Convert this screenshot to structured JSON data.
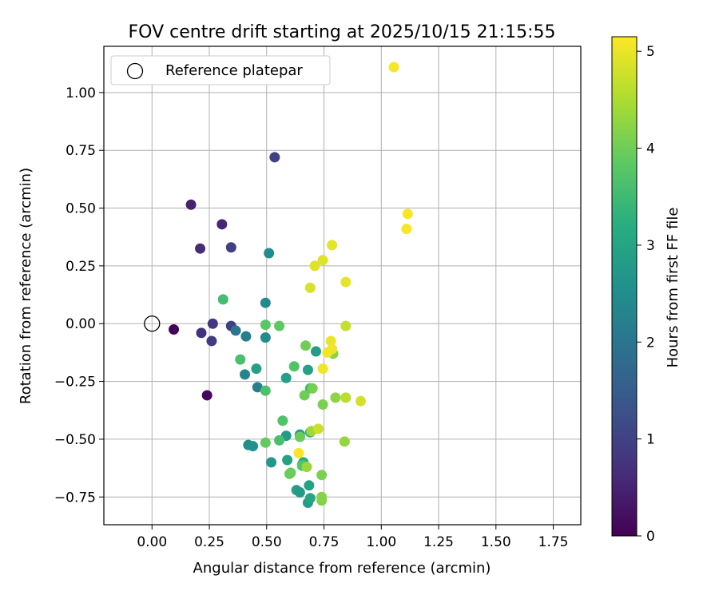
{
  "chart_data": {
    "type": "scatter",
    "title": "FOV centre drift starting at 2025/10/15 21:15:55",
    "xlabel": "Angular distance from reference (arcmin)",
    "ylabel": "Rotation from reference (arcmin)",
    "xlim": [
      -0.21,
      1.87
    ],
    "ylim": [
      -0.87,
      1.2
    ],
    "xticks": [
      0.0,
      0.25,
      0.5,
      0.75,
      1.0,
      1.25,
      1.5,
      1.75
    ],
    "xtick_labels": [
      "0.00",
      "0.25",
      "0.50",
      "0.75",
      "1.00",
      "1.25",
      "1.50",
      "1.75"
    ],
    "yticks": [
      -0.75,
      -0.5,
      -0.25,
      0.0,
      0.25,
      0.5,
      0.75,
      1.0
    ],
    "ytick_labels": [
      "−0.75",
      "−0.50",
      "−0.25",
      "0.00",
      "0.25",
      "0.50",
      "0.75",
      "1.00"
    ],
    "grid": true,
    "legend": {
      "position": "top-left",
      "label": "Reference platepar"
    },
    "reference_point": {
      "x": 0.0,
      "y": 0.0
    },
    "colorbar": {
      "label": "Hours from first FF file",
      "range": [
        0,
        5.15
      ],
      "ticks": [
        0,
        1,
        2,
        3,
        4,
        5
      ],
      "tick_labels": [
        "0",
        "1",
        "2",
        "3",
        "4",
        "5"
      ],
      "colormap": "viridis"
    },
    "points": [
      {
        "x": 0.095,
        "y": -0.025,
        "h": 0.05
      },
      {
        "x": 0.24,
        "y": -0.31,
        "h": 0.1
      },
      {
        "x": 0.17,
        "y": 0.515,
        "h": 0.5
      },
      {
        "x": 0.305,
        "y": 0.43,
        "h": 0.55
      },
      {
        "x": 0.21,
        "y": 0.325,
        "h": 0.6
      },
      {
        "x": 0.215,
        "y": -0.04,
        "h": 0.7
      },
      {
        "x": 0.265,
        "y": 0.0,
        "h": 0.8
      },
      {
        "x": 0.26,
        "y": -0.075,
        "h": 0.9
      },
      {
        "x": 0.345,
        "y": 0.33,
        "h": 0.95
      },
      {
        "x": 0.345,
        "y": -0.01,
        "h": 1.0
      },
      {
        "x": 0.535,
        "y": 0.72,
        "h": 1.0
      },
      {
        "x": 0.365,
        "y": -0.03,
        "h": 2.0
      },
      {
        "x": 0.41,
        "y": -0.055,
        "h": 2.2
      },
      {
        "x": 0.405,
        "y": -0.22,
        "h": 2.3
      },
      {
        "x": 0.46,
        "y": -0.275,
        "h": 2.2
      },
      {
        "x": 0.51,
        "y": 0.305,
        "h": 2.5
      },
      {
        "x": 0.495,
        "y": 0.09,
        "h": 2.4
      },
      {
        "x": 0.495,
        "y": -0.06,
        "h": 2.45
      },
      {
        "x": 0.42,
        "y": -0.525,
        "h": 2.5
      },
      {
        "x": 0.44,
        "y": -0.53,
        "h": 2.6
      },
      {
        "x": 0.52,
        "y": -0.6,
        "h": 2.7
      },
      {
        "x": 0.455,
        "y": -0.195,
        "h": 2.9
      },
      {
        "x": 0.585,
        "y": -0.235,
        "h": 2.9
      },
      {
        "x": 0.68,
        "y": -0.2,
        "h": 2.9
      },
      {
        "x": 0.715,
        "y": -0.12,
        "h": 2.85
      },
      {
        "x": 0.585,
        "y": -0.485,
        "h": 2.8
      },
      {
        "x": 0.645,
        "y": -0.48,
        "h": 2.75
      },
      {
        "x": 0.59,
        "y": -0.59,
        "h": 2.95
      },
      {
        "x": 0.63,
        "y": -0.72,
        "h": 2.9
      },
      {
        "x": 0.645,
        "y": -0.73,
        "h": 2.8
      },
      {
        "x": 0.68,
        "y": -0.775,
        "h": 2.85
      },
      {
        "x": 0.685,
        "y": -0.7,
        "h": 2.95
      },
      {
        "x": 0.69,
        "y": -0.755,
        "h": 3.0
      },
      {
        "x": 0.66,
        "y": -0.6,
        "h": 3.1
      },
      {
        "x": 0.655,
        "y": -0.61,
        "h": 3.4
      },
      {
        "x": 0.69,
        "y": -0.47,
        "h": 3.3
      },
      {
        "x": 0.69,
        "y": -0.28,
        "h": 3.5
      },
      {
        "x": 0.31,
        "y": 0.105,
        "h": 3.55
      },
      {
        "x": 0.385,
        "y": -0.155,
        "h": 3.6
      },
      {
        "x": 0.495,
        "y": -0.29,
        "h": 3.65
      },
      {
        "x": 0.555,
        "y": -0.505,
        "h": 3.6
      },
      {
        "x": 0.57,
        "y": -0.42,
        "h": 3.7
      },
      {
        "x": 0.62,
        "y": -0.185,
        "h": 3.7
      },
      {
        "x": 0.655,
        "y": -0.615,
        "h": 3.75
      },
      {
        "x": 0.495,
        "y": -0.005,
        "h": 3.8
      },
      {
        "x": 0.555,
        "y": -0.01,
        "h": 3.85
      },
      {
        "x": 0.495,
        "y": -0.515,
        "h": 3.9
      },
      {
        "x": 0.6,
        "y": -0.65,
        "h": 3.9
      },
      {
        "x": 0.605,
        "y": -0.645,
        "h": 3.95
      },
      {
        "x": 0.645,
        "y": -0.49,
        "h": 3.95
      },
      {
        "x": 0.67,
        "y": -0.095,
        "h": 4.0
      },
      {
        "x": 0.665,
        "y": -0.31,
        "h": 4.0
      },
      {
        "x": 0.7,
        "y": -0.28,
        "h": 4.05
      },
      {
        "x": 0.745,
        "y": -0.35,
        "h": 4.1
      },
      {
        "x": 0.74,
        "y": -0.655,
        "h": 4.1
      },
      {
        "x": 0.74,
        "y": -0.765,
        "h": 4.15
      },
      {
        "x": 0.74,
        "y": -0.75,
        "h": 4.2
      },
      {
        "x": 0.79,
        "y": -0.13,
        "h": 4.2
      },
      {
        "x": 0.8,
        "y": -0.32,
        "h": 4.25
      },
      {
        "x": 0.84,
        "y": -0.51,
        "h": 4.3
      },
      {
        "x": 0.675,
        "y": -0.62,
        "h": 4.35
      },
      {
        "x": 0.695,
        "y": -0.465,
        "h": 4.4
      },
      {
        "x": 0.845,
        "y": -0.32,
        "h": 4.6
      },
      {
        "x": 0.845,
        "y": -0.01,
        "h": 4.7
      },
      {
        "x": 0.725,
        "y": -0.455,
        "h": 4.75
      },
      {
        "x": 0.91,
        "y": -0.335,
        "h": 4.8
      },
      {
        "x": 0.69,
        "y": 0.155,
        "h": 4.85
      },
      {
        "x": 0.745,
        "y": 0.275,
        "h": 4.9
      },
      {
        "x": 0.71,
        "y": 0.25,
        "h": 4.9
      },
      {
        "x": 0.785,
        "y": 0.34,
        "h": 4.95
      },
      {
        "x": 0.845,
        "y": 0.18,
        "h": 4.95
      },
      {
        "x": 0.78,
        "y": -0.075,
        "h": 5.0
      },
      {
        "x": 0.785,
        "y": -0.11,
        "h": 5.05
      },
      {
        "x": 0.765,
        "y": -0.125,
        "h": 5.05
      },
      {
        "x": 0.745,
        "y": -0.195,
        "h": 5.05
      },
      {
        "x": 0.64,
        "y": -0.56,
        "h": 5.1
      },
      {
        "x": 1.055,
        "y": 1.11,
        "h": 5.1
      },
      {
        "x": 1.115,
        "y": 0.475,
        "h": 5.1
      },
      {
        "x": 1.11,
        "y": 0.41,
        "h": 5.1
      }
    ]
  }
}
